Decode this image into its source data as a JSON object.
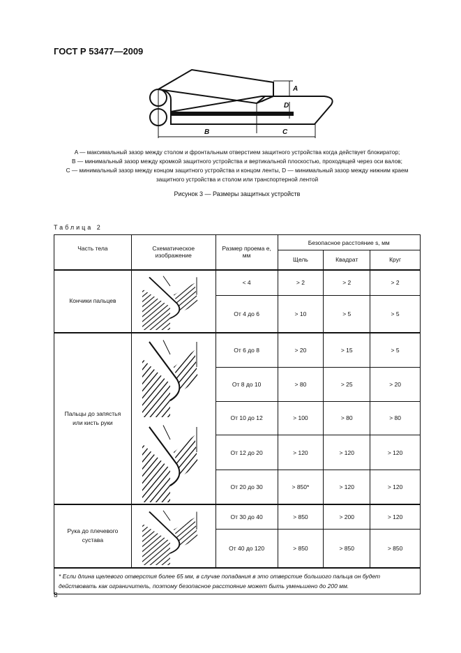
{
  "header": "ГОСТ Р 53477—2009",
  "figure": {
    "labels": {
      "A": "A",
      "B": "B",
      "C": "C",
      "D": "D"
    },
    "legend": [
      "A — максимальный зазор между столом и фронтальным отверстием защитного устройства  когда действует блокиратор;",
      "B — минимальный зазор между кромкой защитного устройства и вертикальной плоскостью, проходящей через оси валов;",
      "C — минимальный зазор между концом защитного устройства и концом ленты, D — минимальный зазор между нижним краем",
      "защитного устройства и столом или транспортерной лентой"
    ],
    "caption": "Рисунок 3 — Размеры защитных устройств"
  },
  "table": {
    "caption": "Таблица 2",
    "headers": {
      "part": "Часть тела",
      "sketch": "Схематическое изображение",
      "opening": "Размер проема e, мм",
      "safe": "Безопасное расстояние s, мм",
      "slot": "Щель",
      "square": "Квадрат",
      "circle": "Круг"
    },
    "groups": [
      {
        "part": "Кончики пальцев",
        "rows": [
          [
            "< 4",
            "> 2",
            "> 2",
            "> 2"
          ],
          [
            "От 4 до 6",
            "> 10",
            "> 5",
            "> 5"
          ]
        ]
      },
      {
        "part": "Пальцы до запястья или кисть руки",
        "rows": [
          [
            "От 6 до 8",
            "> 20",
            "> 15",
            "> 5"
          ],
          [
            "От 8 до 10",
            "> 80",
            "> 25",
            "> 20"
          ],
          [
            "От 10 до 12",
            "> 100",
            "> 80",
            "> 80"
          ],
          [
            "От 12 до 20",
            "> 120",
            "> 120",
            "> 120"
          ],
          [
            "От 20 до 30",
            "> 850*",
            "> 120",
            "> 120"
          ]
        ]
      },
      {
        "part": "Рука до плечевого сустава",
        "rows": [
          [
            "От 30 до 40",
            "> 850",
            "> 200",
            "> 120"
          ],
          [
            "От 40 до 120",
            "> 850",
            "> 850",
            "> 850"
          ]
        ]
      }
    ],
    "footnote": "* Если длина щелевого отверстия более 65 мм, в случае попадания в это отверстие большого пальца он будет действовать как ограничитель, поэтому безопасное расстояние может быть уменьшено до 200 мм."
  },
  "page_number": "8"
}
